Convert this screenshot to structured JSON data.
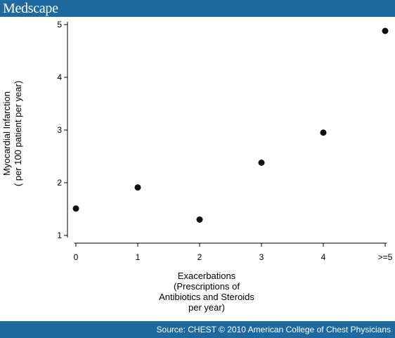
{
  "header": {
    "brand": "Medscape"
  },
  "footer": {
    "source": "Source: CHEST © 2010 American College of Chest Physicians"
  },
  "colors": {
    "bar": "#1e6aa0",
    "point": "#111111",
    "axis": "#000000"
  },
  "chart_data": {
    "type": "scatter",
    "title": "",
    "ylabel_lines": [
      "Myocardial Infarction",
      "( per 100 patient per year)"
    ],
    "xlabel_lines": [
      "Exacerbations",
      "(Prescriptions of",
      "Antibiotics and Steroids",
      "per year)"
    ],
    "categories": [
      "0",
      "1",
      "2",
      "3",
      "4",
      ">=5"
    ],
    "values": [
      1.51,
      1.91,
      1.3,
      2.38,
      2.95,
      4.88
    ],
    "yticks": [
      1,
      2,
      3,
      4,
      5
    ],
    "ylim": [
      1,
      5
    ],
    "grid": false,
    "legend": "none"
  }
}
